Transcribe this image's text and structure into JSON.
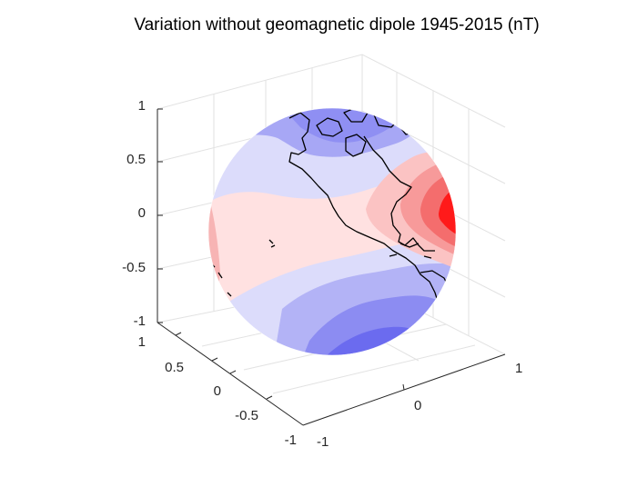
{
  "chart_data": {
    "type": "heatmap",
    "projection": "3-D globe (orthographic view of a unit sphere)",
    "title": "Variation without geomagnetic dipole 1945-2015  (nT)",
    "colormap": {
      "negative": "#5a5af5",
      "zero": "#ffffff",
      "positive": "#ff0000"
    },
    "axes": {
      "x": {
        "ticks": [
          "-1",
          "0",
          "1"
        ],
        "range": [
          -1,
          1
        ]
      },
      "y": {
        "ticks": [
          "-1",
          "-0.5",
          "0",
          "0.5",
          "1"
        ],
        "range": [
          -1,
          1
        ]
      },
      "z": {
        "ticks": [
          "-1",
          "-0.5",
          "0",
          "0.5",
          "1"
        ],
        "range": [
          -1,
          1
        ]
      }
    },
    "grid": true,
    "legend": "none",
    "overlay": "coastlines (North and South America, Greenland, Arctic islands)",
    "regions": [
      {
        "location": "Arctic / northern Canada",
        "sign": "negative",
        "level": 0.45
      },
      {
        "location": "North Pacific",
        "sign": "negative",
        "level": 0.15
      },
      {
        "location": "Equatorial Pacific",
        "sign": "positive",
        "level": 0.15
      },
      {
        "location": "Eastern United States / Caribbean / Atlantic",
        "sign": "positive",
        "level": 1.0
      },
      {
        "location": "South Pacific",
        "sign": "negative",
        "level": 0.75
      }
    ]
  }
}
